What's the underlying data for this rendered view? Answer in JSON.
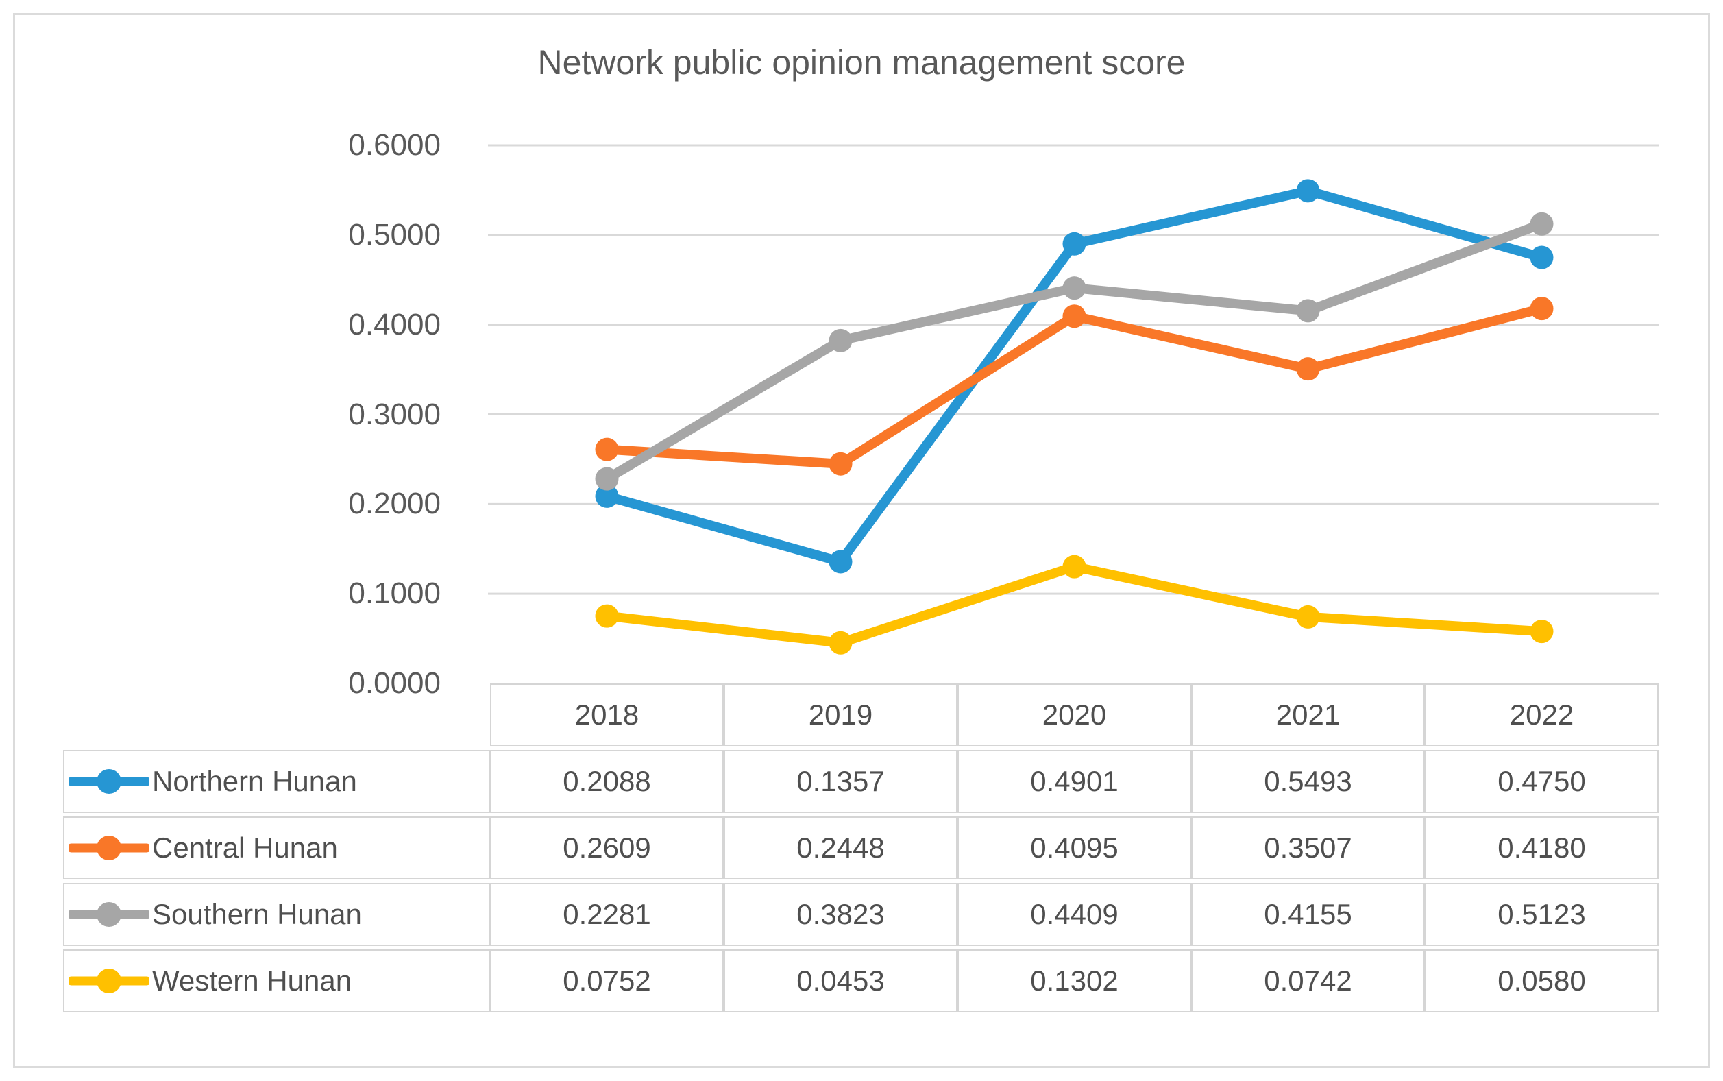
{
  "chart_data": {
    "type": "line",
    "title": "Network public opinion management score",
    "categories": [
      "2018",
      "2019",
      "2020",
      "2021",
      "2022"
    ],
    "series": [
      {
        "name": "Northern Hunan",
        "color": "#2696D3",
        "values": [
          0.2088,
          0.1357,
          0.4901,
          0.5493,
          0.475
        ]
      },
      {
        "name": "Central Hunan",
        "color": "#F97728",
        "values": [
          0.2609,
          0.2448,
          0.4095,
          0.3507,
          0.418
        ]
      },
      {
        "name": "Southern Hunan",
        "color": "#A6A6A6",
        "values": [
          0.2281,
          0.3823,
          0.4409,
          0.4155,
          0.5123
        ]
      },
      {
        "name": "Western Hunan",
        "color": "#FFC000",
        "values": [
          0.0752,
          0.0453,
          0.1302,
          0.0742,
          0.058
        ]
      }
    ],
    "ylim": [
      0.0,
      0.6
    ],
    "ytick_step": 0.1,
    "ytick_decimals": 4,
    "value_decimals": 4,
    "grid": true,
    "legend_position": "data-table-left",
    "xlabel": "",
    "ylabel": ""
  },
  "colors": {
    "gridline": "#d9d9d9",
    "table_border": "#d5d5d5",
    "text": "#595959",
    "frame_border": "#dbdbdb"
  }
}
